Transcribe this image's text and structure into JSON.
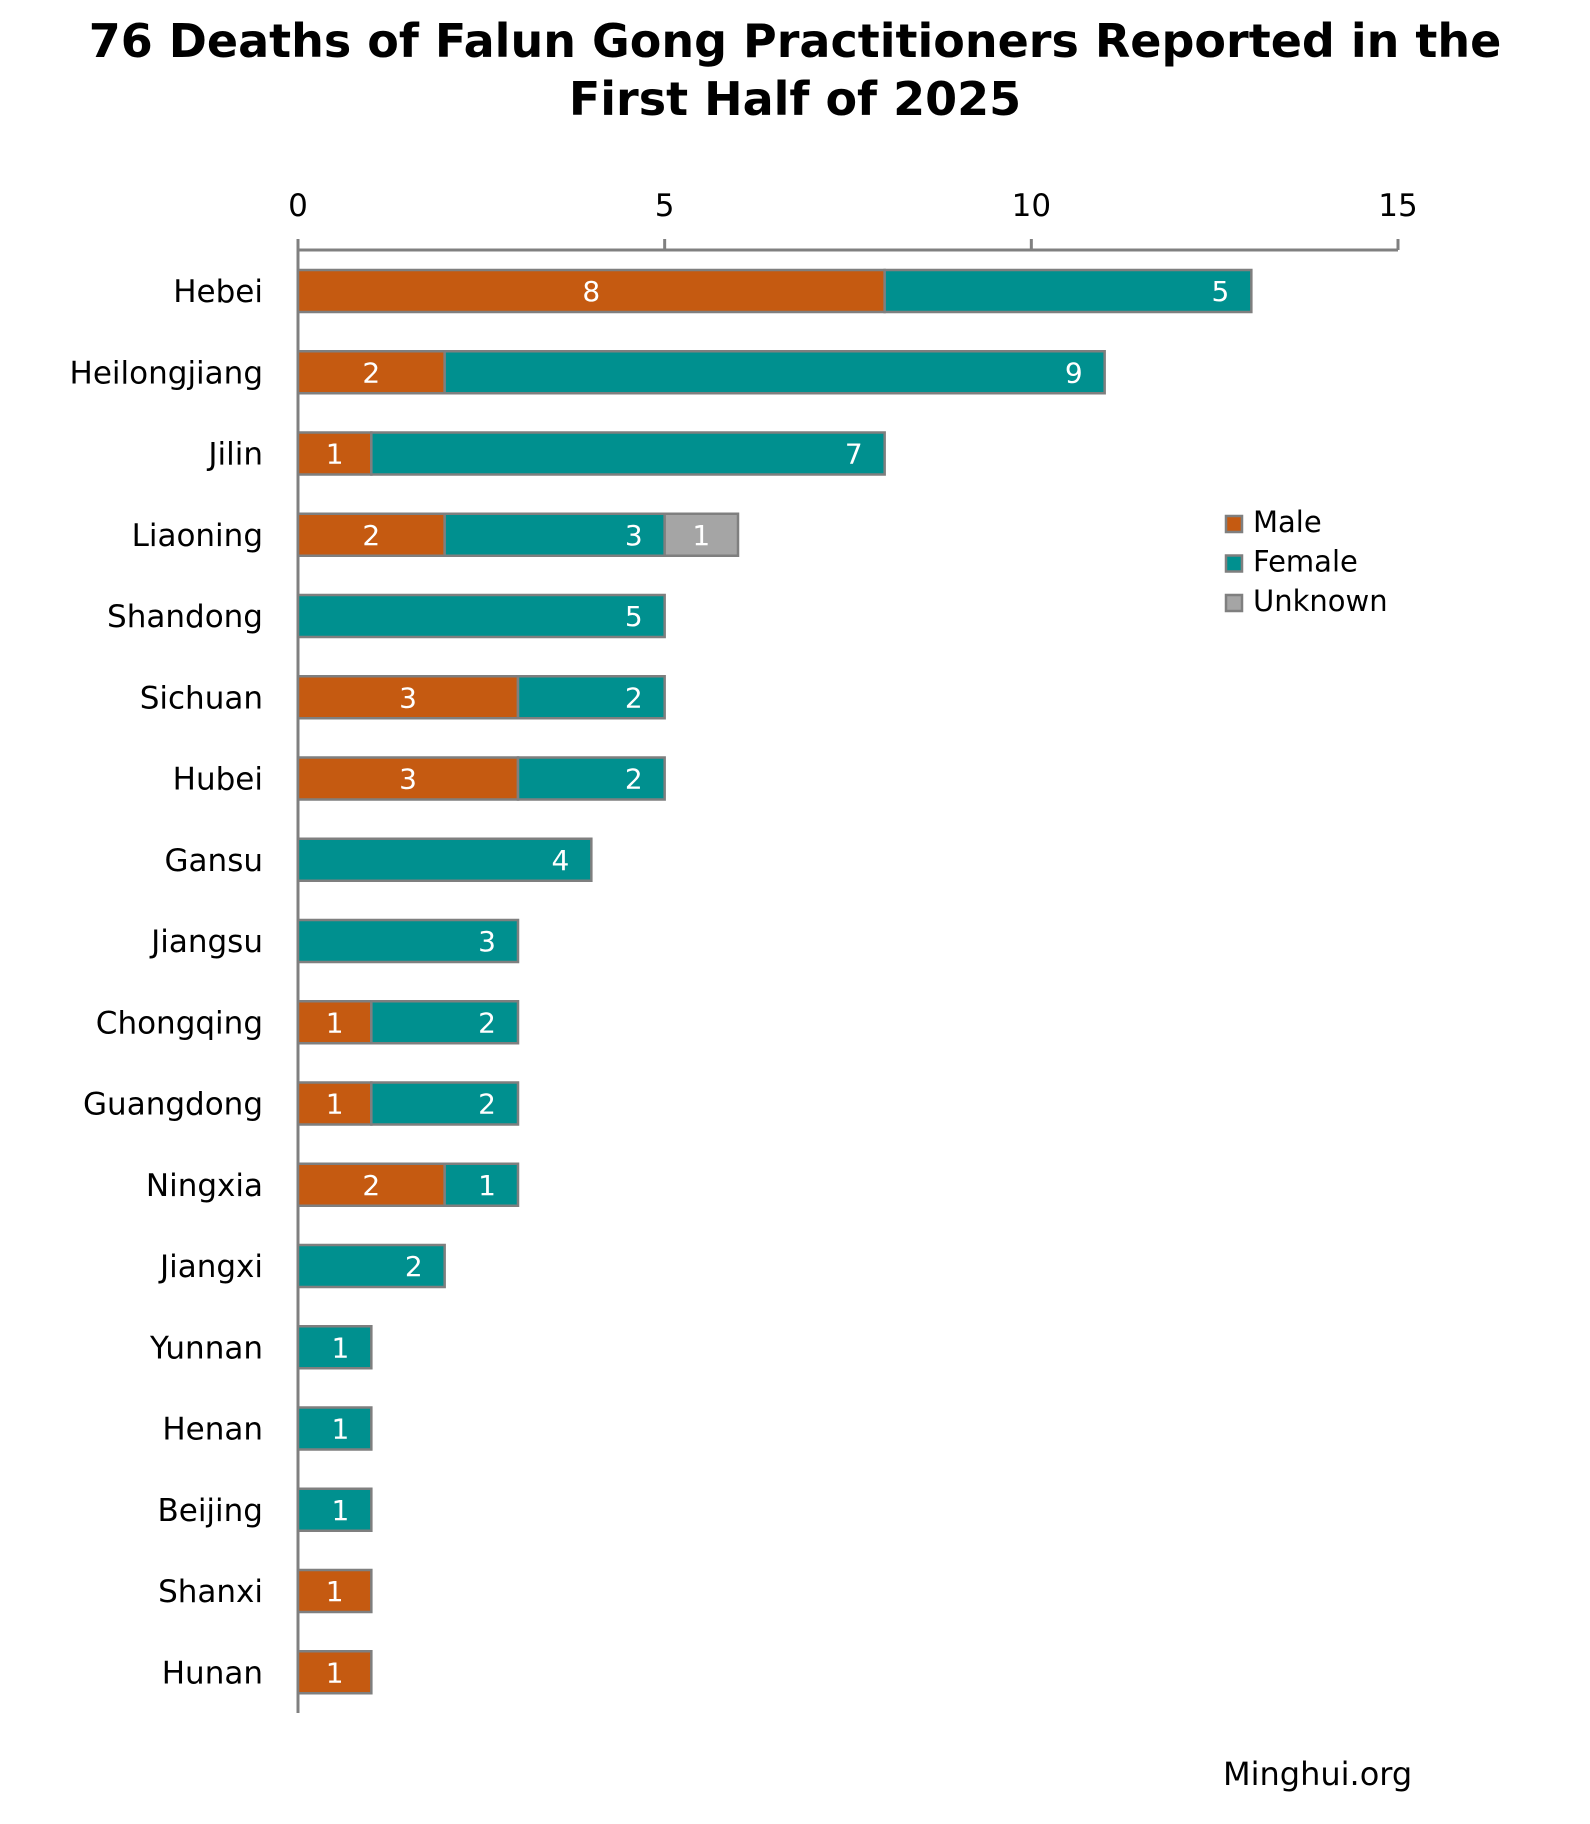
{
  "chart_data": {
    "type": "bar",
    "orientation": "horizontal",
    "stacked": true,
    "title_line1": "76 Deaths of Falun Gong Practitioners Reported in the",
    "title_line2": "First Half of 2025",
    "xlabel": "",
    "ylabel": "",
    "xlim": [
      0,
      15
    ],
    "xticks": [
      0,
      5,
      10,
      15
    ],
    "xtick_labels": [
      "0",
      "5",
      "10",
      "15"
    ],
    "axis_position": "top",
    "grid": false,
    "legend_position": "right",
    "categories": [
      "Hebei",
      "Heilongjiang",
      "Jilin",
      "Liaoning",
      "Shandong",
      "Sichuan",
      "Hubei",
      "Gansu",
      "Jiangsu",
      "Chongqing",
      "Guangdong",
      "Ningxia",
      "Jiangxi",
      "Yunnan",
      "Henan",
      "Beijing",
      "Shanxi",
      "Hunan"
    ],
    "series": [
      {
        "name": "Male",
        "color": "#C55A11",
        "label_pos": "center",
        "values": [
          8,
          2,
          1,
          2,
          0,
          3,
          3,
          0,
          0,
          1,
          1,
          2,
          0,
          0,
          0,
          0,
          1,
          1
        ]
      },
      {
        "name": "Female",
        "color": "#00908F",
        "label_pos": "inside-end",
        "values": [
          5,
          9,
          7,
          3,
          5,
          2,
          2,
          4,
          3,
          2,
          2,
          1,
          2,
          1,
          1,
          1,
          0,
          0
        ]
      },
      {
        "name": "Unknown",
        "color": "#A5A5A5",
        "label_pos": "center",
        "values": [
          0,
          0,
          0,
          1,
          0,
          0,
          0,
          0,
          0,
          0,
          0,
          0,
          0,
          0,
          0,
          0,
          0,
          0
        ]
      }
    ],
    "bar_border_color": "#7F7F7F",
    "axis_color": "#808080"
  },
  "source": "Minghui.org"
}
